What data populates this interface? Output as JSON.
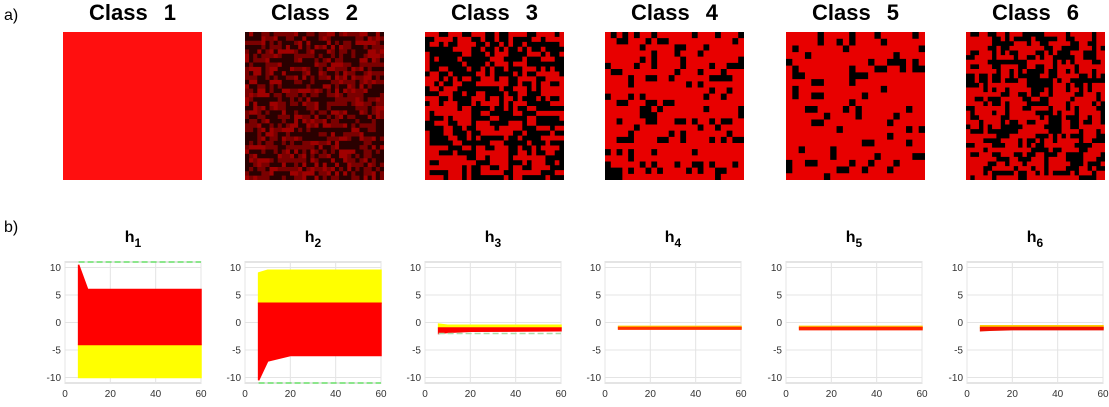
{
  "panel_a": {
    "label": "a)",
    "classes": [
      "Class 1",
      "Class 2",
      "Class 3",
      "Class 4",
      "Class 5",
      "Class 6"
    ]
  },
  "panel_b": {
    "label": "b)"
  },
  "chart_data": [
    {
      "type": "band",
      "title": "h",
      "subscript": "1",
      "x": [
        6,
        10,
        20,
        60
      ],
      "xlim": [
        0,
        60
      ],
      "ylim": [
        -11,
        11
      ],
      "xticks": [
        0,
        20,
        40,
        60
      ],
      "yticks": [
        -10,
        -5,
        0,
        5,
        10
      ],
      "grid": true,
      "bands": [
        {
          "color": "#ffff00",
          "high": [
            -4,
            -4,
            -4,
            -4
          ],
          "low": [
            -10,
            -10,
            -10,
            -10
          ]
        },
        {
          "color": "#ff0000",
          "high": [
            10.5,
            6,
            6,
            6
          ],
          "low": [
            -4,
            -4,
            -4,
            -4
          ]
        }
      ],
      "dashed": {
        "color": "#66dd66",
        "values": [
          11,
          11,
          11,
          11
        ]
      }
    },
    {
      "type": "band",
      "title": "h",
      "subscript": "2",
      "x": [
        6,
        10,
        20,
        60
      ],
      "xlim": [
        0,
        60
      ],
      "ylim": [
        -11,
        11
      ],
      "xticks": [
        0,
        20,
        40,
        60
      ],
      "yticks": [
        -10,
        -5,
        0,
        5,
        10
      ],
      "grid": true,
      "bands": [
        {
          "color": "#ffff00",
          "high": [
            9,
            9.5,
            9.5,
            9.5
          ],
          "low": [
            3.5,
            3.5,
            3.5,
            3.5
          ]
        },
        {
          "color": "#ff0000",
          "high": [
            3.5,
            3.5,
            3.5,
            3.5
          ],
          "low": [
            -10.5,
            -7,
            -6,
            -6
          ]
        }
      ],
      "dashed": {
        "color": "#66dd66",
        "values": [
          -11,
          -11,
          -11,
          -11
        ]
      }
    },
    {
      "type": "band",
      "title": "h",
      "subscript": "3",
      "x": [
        6,
        10,
        20,
        60
      ],
      "xlim": [
        0,
        60
      ],
      "ylim": [
        -11,
        11
      ],
      "xticks": [
        0,
        20,
        40,
        60
      ],
      "yticks": [
        -10,
        -5,
        0,
        5,
        10
      ],
      "grid": true,
      "bands": [
        {
          "color": "#ffff00",
          "high": [
            -0.3,
            -0.5,
            -0.5,
            -0.5
          ],
          "low": [
            -1,
            -1,
            -1,
            -1
          ]
        },
        {
          "color": "#ff0000",
          "high": [
            -1,
            -1,
            -1,
            -1
          ],
          "low": [
            -2,
            -1.8,
            -1.6,
            -1.5
          ]
        }
      ],
      "dashed": {
        "color": "#aaddaa",
        "values": [
          -2,
          -2,
          -2,
          -2
        ]
      }
    },
    {
      "type": "band",
      "title": "h",
      "subscript": "4",
      "x": [
        6,
        10,
        20,
        60
      ],
      "xlim": [
        0,
        60
      ],
      "ylim": [
        -11,
        11
      ],
      "xticks": [
        0,
        20,
        40,
        60
      ],
      "yticks": [
        -10,
        -5,
        0,
        5,
        10
      ],
      "grid": true,
      "bands": [
        {
          "color": "#ffcc00",
          "high": [
            -0.7,
            -0.7,
            -0.7,
            -0.7
          ],
          "low": [
            -1,
            -1,
            -1,
            -1
          ]
        },
        {
          "color": "#ff3300",
          "high": [
            -0.9,
            -0.9,
            -0.9,
            -0.9
          ],
          "low": [
            -1.2,
            -1.2,
            -1.2,
            -1.2
          ]
        }
      ]
    },
    {
      "type": "band",
      "title": "h",
      "subscript": "5",
      "x": [
        6,
        10,
        20,
        60
      ],
      "xlim": [
        0,
        60
      ],
      "ylim": [
        -11,
        11
      ],
      "xticks": [
        0,
        20,
        40,
        60
      ],
      "yticks": [
        -10,
        -5,
        0,
        5,
        10
      ],
      "grid": true,
      "bands": [
        {
          "color": "#ffcc00",
          "high": [
            -0.7,
            -0.7,
            -0.7,
            -0.7
          ],
          "low": [
            -1,
            -1,
            -1,
            -1
          ]
        },
        {
          "color": "#ff2200",
          "high": [
            -0.9,
            -0.9,
            -0.9,
            -0.9
          ],
          "low": [
            -1.3,
            -1.3,
            -1.3,
            -1.3
          ]
        }
      ]
    },
    {
      "type": "band",
      "title": "h",
      "subscript": "6",
      "x": [
        6,
        10,
        20,
        60
      ],
      "xlim": [
        0,
        60
      ],
      "ylim": [
        -11,
        11
      ],
      "xticks": [
        0,
        20,
        40,
        60
      ],
      "yticks": [
        -10,
        -5,
        0,
        5,
        10
      ],
      "grid": true,
      "bands": [
        {
          "color": "#ffcc00",
          "high": [
            -0.6,
            -0.6,
            -0.6,
            -0.6
          ],
          "low": [
            -1,
            -1,
            -1,
            -1
          ]
        },
        {
          "color": "#ee1100",
          "high": [
            -0.9,
            -0.9,
            -0.9,
            -0.9
          ],
          "low": [
            -1.5,
            -1.4,
            -1.3,
            -1.3
          ]
        }
      ]
    }
  ]
}
